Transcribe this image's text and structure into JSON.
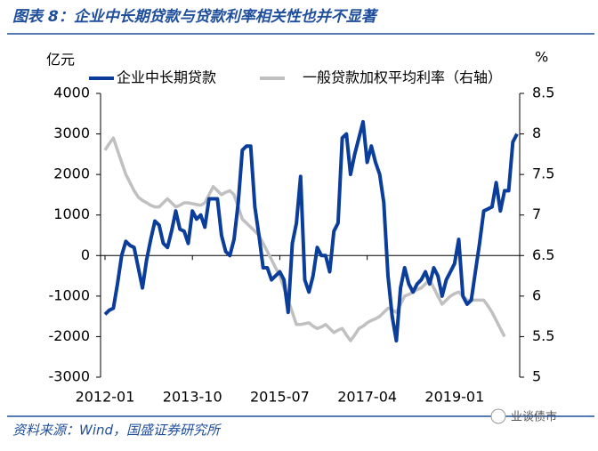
{
  "title": "图表 8：企业中长期贷款与贷款利率相关性也并不显著",
  "source": "资料来源：Wind，国盛证券研究所",
  "watermark": "业谈债市",
  "chart_data": {
    "type": "line",
    "y_label": "亿元",
    "y2_label": "%",
    "categories": [
      "2012-01",
      null,
      null,
      null,
      null,
      null,
      null,
      null,
      null,
      null,
      null,
      null,
      null,
      null,
      null,
      null,
      null,
      null,
      null,
      null,
      null,
      "2013-10",
      null,
      null,
      null,
      null,
      null,
      null,
      null,
      null,
      null,
      null,
      null,
      null,
      null,
      null,
      null,
      null,
      null,
      null,
      null,
      null,
      "2015-07",
      null,
      null,
      null,
      null,
      null,
      null,
      null,
      null,
      null,
      null,
      null,
      null,
      null,
      null,
      null,
      null,
      null,
      null,
      null,
      null,
      "2017-04",
      null,
      null,
      null,
      null,
      null,
      null,
      null,
      null,
      null,
      null,
      null,
      null,
      null,
      null,
      null,
      null,
      null,
      null,
      null,
      null,
      "2019-01",
      null,
      null,
      null,
      null,
      null,
      null,
      null,
      null,
      null,
      null,
      null,
      null,
      null,
      null,
      null
    ],
    "ylim": [
      -3000,
      4000
    ],
    "yticks": [
      -3000,
      -2000,
      -1000,
      0,
      1000,
      2000,
      3000,
      4000
    ],
    "y2lim": [
      5,
      8.5
    ],
    "y2ticks": [
      5,
      5.5,
      6,
      6.5,
      7,
      7.5,
      8,
      8.5
    ],
    "series": [
      {
        "name": "企业中长期贷款",
        "color": "#0b3d9a",
        "values": [
          -1450,
          -1350,
          -1300,
          -700,
          0,
          350,
          250,
          200,
          -300,
          -800,
          -100,
          400,
          850,
          750,
          300,
          200,
          600,
          1100,
          650,
          600,
          300,
          1100,
          900,
          1000,
          700,
          1400,
          1400,
          1400,
          500,
          100,
          0,
          400,
          1300,
          2600,
          2700,
          2700,
          1200,
          500,
          -300,
          -300,
          -600,
          -500,
          -400,
          -600,
          -1400,
          300,
          800,
          1950,
          -600,
          -900,
          -500,
          200,
          0,
          0,
          -400,
          600,
          800,
          2900,
          3000,
          2000,
          2500,
          2900,
          3300,
          2300,
          2700,
          2300,
          2000,
          1300,
          -500,
          -1500,
          -2100,
          -800,
          -300,
          -700,
          -900,
          -700,
          -600,
          -400,
          -700,
          -300,
          -500,
          -1000,
          -600,
          -400,
          -200,
          400,
          -1000,
          -1200,
          -1100,
          -400,
          300,
          1100,
          1150,
          1200,
          1800,
          1100,
          1600,
          1600,
          2800,
          3000
        ]
      },
      {
        "name": "一般贷款加权平均利率（右轴）",
        "color": "#c0c0c0",
        "axis": "y2",
        "values": [
          7.8,
          7.88,
          7.95,
          7.8,
          7.65,
          7.5,
          7.4,
          7.3,
          7.22,
          7.18,
          7.15,
          7.12,
          7.1,
          7.1,
          7.15,
          7.2,
          7.15,
          7.1,
          7.12,
          7.15,
          7.15,
          7.14,
          7.13,
          7.12,
          7.15,
          7.25,
          7.35,
          7.3,
          7.25,
          7.28,
          7.3,
          7.25,
          7.1,
          6.95,
          6.9,
          6.85,
          6.8,
          6.75,
          6.65,
          6.55,
          6.45,
          6.35,
          6.25,
          6.1,
          5.95,
          5.8,
          5.65,
          5.65,
          5.66,
          5.67,
          5.63,
          5.6,
          5.62,
          5.65,
          5.6,
          5.55,
          5.58,
          5.6,
          5.52,
          5.45,
          5.52,
          5.6,
          5.63,
          5.67,
          5.7,
          5.72,
          5.75,
          5.8,
          5.85,
          5.83,
          5.8,
          5.9,
          6.0,
          6.02,
          6.05,
          6.08,
          6.1,
          6.15,
          6.2,
          6.1,
          6.0,
          5.9,
          5.95,
          6.0,
          6.03,
          6.05,
          6.0,
          5.95,
          5.95,
          5.95,
          5.95,
          5.95,
          5.88,
          5.8,
          5.7,
          5.6,
          5.5,
          null,
          null,
          null
        ]
      }
    ]
  }
}
